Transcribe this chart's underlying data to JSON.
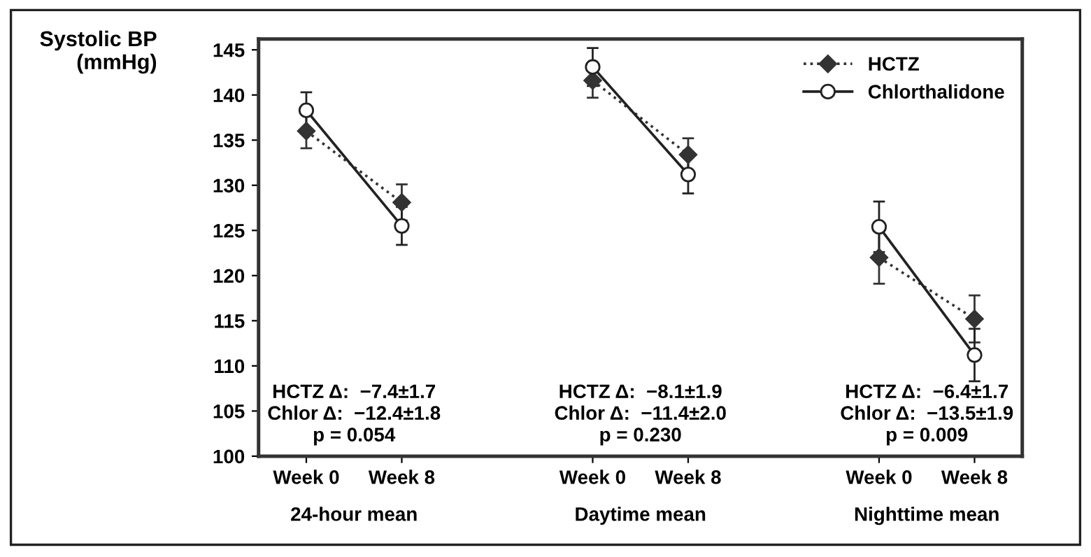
{
  "chart_data": {
    "type": "line",
    "ylabel": "Systolic BP\n(mmHg)",
    "categories": [
      "Week 0",
      "Week 8",
      null,
      "Week 0",
      "Week 8",
      null,
      "Week 0",
      "Week 8"
    ],
    "series": [
      {
        "name": "HCTZ",
        "color": "#333333",
        "marker": "diamond",
        "line_style": "dotted",
        "values": [
          136.0,
          128.1,
          null,
          141.6,
          133.4,
          null,
          122.0,
          115.2
        ],
        "errors": [
          1.9,
          2.0,
          null,
          1.9,
          1.8,
          null,
          2.9,
          2.6
        ]
      },
      {
        "name": "Chlorthalidone",
        "color": "#222222",
        "marker": "circle",
        "line_style": "solid",
        "values": [
          138.3,
          125.5,
          null,
          143.1,
          131.2,
          null,
          125.4,
          111.2
        ],
        "errors": [
          2.0,
          2.1,
          null,
          2.1,
          2.1,
          null,
          2.8,
          2.9
        ]
      }
    ],
    "ylim": [
      100,
      146.2
    ],
    "yticks": [
      100,
      105,
      110,
      115,
      120,
      125,
      130,
      135,
      140,
      145
    ],
    "grid": false,
    "legend": "top right",
    "annotations": [
      "HCTZ Δ:  −7.4±1.7\nChlor Δ:  −12.4±1.8\np = 0.054",
      "HCTZ Δ:  −8.1±1.9\nChlor Δ:  −11.4±2.0\np = 0.230",
      "HCTZ Δ:  −6.4±1.7\nChlor Δ:  −13.5±1.9\np = 0.009",
      "24-hour mean",
      "Daytime mean",
      "Nighttime mean"
    ]
  }
}
